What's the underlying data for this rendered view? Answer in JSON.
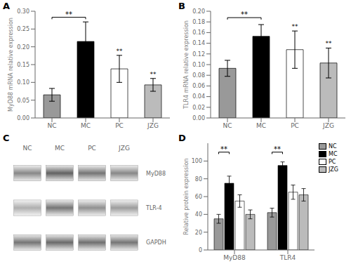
{
  "chart_data": [
    {
      "type": "bar",
      "title": "A",
      "categories": [
        "NC",
        "MC",
        "PC",
        "JZG"
      ],
      "values": [
        0.065,
        0.215,
        0.138,
        0.093
      ],
      "errors": [
        0.018,
        0.055,
        0.038,
        0.018
      ],
      "colors": [
        "#999999",
        "#000000",
        "white",
        "#bbbbbb"
      ],
      "ylabel": "MyD88 mRNA relative expression",
      "ylim": [
        0,
        0.3
      ],
      "yticks": [
        {
          "value": 0,
          "label": "0.00"
        },
        0.05,
        {
          "value": 0.1,
          "label": "0.10"
        },
        0.15,
        {
          "value": 0.2,
          "label": "0.20"
        },
        0.25,
        {
          "value": 0.3,
          "label": "0.30"
        }
      ],
      "grid": false,
      "annotations": [
        {
          "text": "**",
          "from": "NC",
          "to": "MC",
          "y": 0.283
        },
        {
          "text": "**",
          "at": "PC"
        },
        {
          "text": "**",
          "at": "JZG"
        }
      ]
    },
    {
      "type": "bar",
      "title": "B",
      "categories": [
        "NC",
        "MC",
        "PC",
        "JZG"
      ],
      "values": [
        0.093,
        0.153,
        0.128,
        0.103
      ],
      "errors": [
        0.015,
        0.022,
        0.035,
        0.028
      ],
      "colors": [
        "#999999",
        "#000000",
        "white",
        "#bbbbbb"
      ],
      "ylabel": "TLR4 mRNA relative expression",
      "ylim": [
        0,
        0.2
      ],
      "yticks": [
        {
          "value": 0,
          "label": "0.00"
        },
        0.02,
        0.04,
        0.06,
        0.08,
        {
          "value": 0.1,
          "label": "0.10"
        },
        0.12,
        0.14,
        0.16,
        0.18,
        {
          "value": 0.2,
          "label": "0.20"
        }
      ],
      "grid": false,
      "annotations": [
        {
          "text": "**",
          "from": "NC",
          "to": "MC",
          "y": 0.188
        },
        {
          "text": "**",
          "at": "PC"
        },
        {
          "text": "**",
          "at": "JZG"
        }
      ]
    },
    {
      "type": "heatmap",
      "title": "C",
      "categories": [
        "NC",
        "MC",
        "PC",
        "JZG"
      ],
      "rows": [
        "MyD88",
        "TLR-4",
        "GAPDH"
      ],
      "cells": [
        [
          0.62,
          0.82,
          0.72,
          0.62
        ],
        [
          0.42,
          0.72,
          0.58,
          0.52
        ],
        [
          0.72,
          0.78,
          0.75,
          0.72
        ]
      ]
    },
    {
      "type": "bar",
      "title": "D",
      "categories": [
        "MyD88",
        "TLR4"
      ],
      "series": [
        {
          "name": "NC",
          "color": "#999999",
          "values": [
            35,
            42
          ],
          "errors": [
            5,
            5
          ]
        },
        {
          "name": "MC",
          "color": "#000000",
          "values": [
            75,
            95
          ],
          "errors": [
            8,
            4
          ]
        },
        {
          "name": "PC",
          "color": "white",
          "values": [
            55,
            65
          ],
          "errors": [
            7,
            8
          ]
        },
        {
          "name": "JZG",
          "color": "#bbbbbb",
          "values": [
            40,
            62
          ],
          "errors": [
            5,
            7
          ]
        }
      ],
      "ylabel": "Relative protein expression",
      "ylim": [
        0,
        120
      ],
      "yticks": [
        0,
        20,
        40,
        60,
        80,
        100
      ],
      "grid": false,
      "legend": "right",
      "annotations": [
        {
          "text": "**",
          "group": "MyD88",
          "from": "NC",
          "to": "MC",
          "y": 110
        },
        {
          "text": "**",
          "group": "TLR4",
          "from": "NC",
          "to": "MC",
          "y": 110
        }
      ]
    }
  ]
}
